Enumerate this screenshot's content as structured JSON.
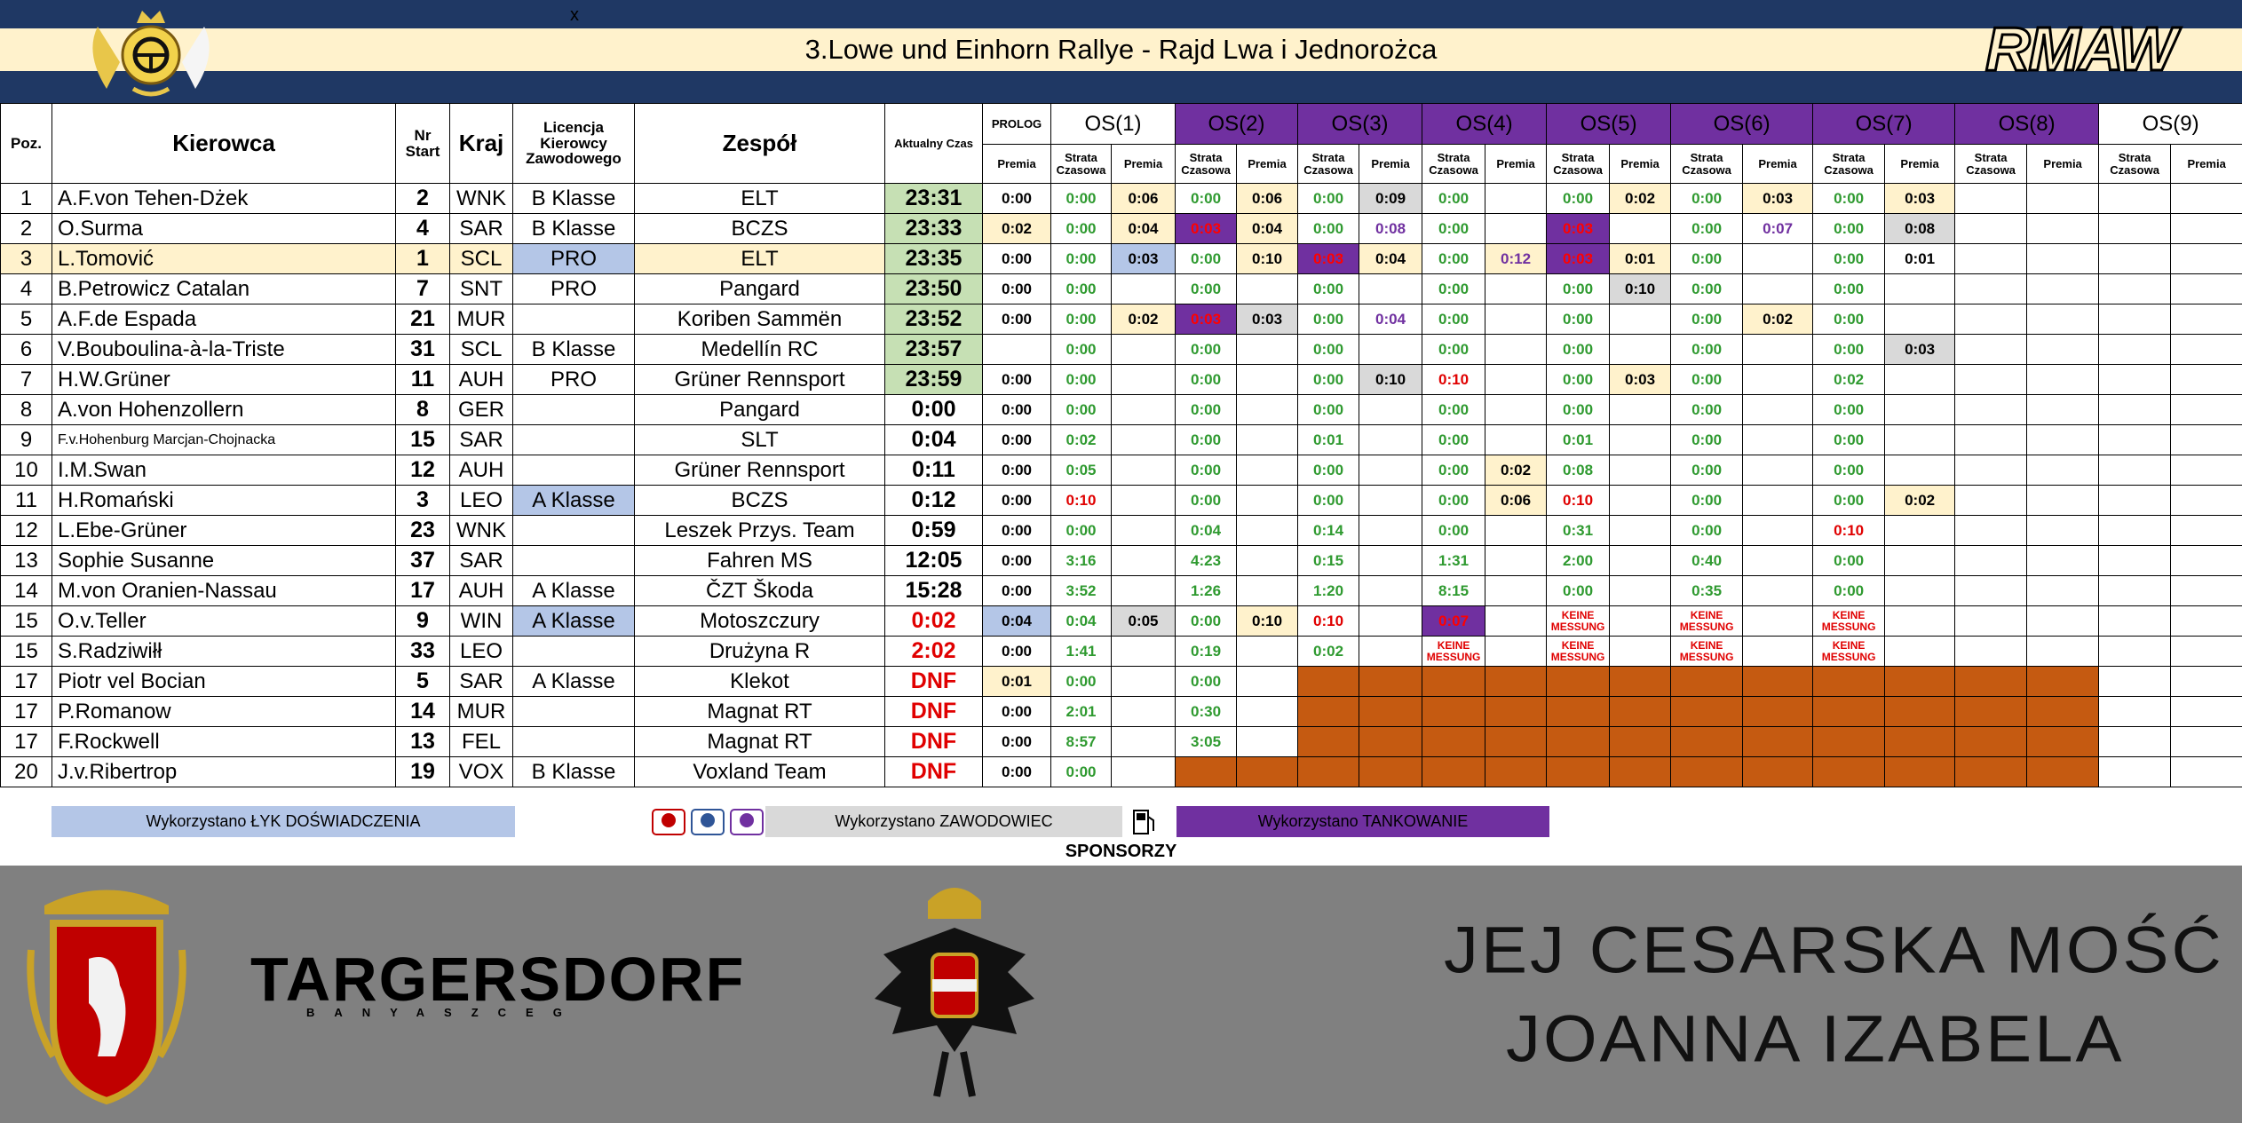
{
  "header": {
    "mark": "x",
    "title": "3.Lowe und Einhorn Rallye - Rajd Lwa i Jednorożca",
    "logo": "RMAW"
  },
  "table": {
    "columns": [
      "Poz.",
      "Kierowca",
      "Nr Start",
      "Kraj",
      "Licencja Kierowcy Zawodowego",
      "Zespół",
      "Aktualny Czas"
    ],
    "prolog": "PROLOG",
    "prolog_sub": "Premia",
    "stages": [
      "OS(1)",
      "OS(2)",
      "OS(3)",
      "OS(4)",
      "OS(5)",
      "OS(6)",
      "OS(7)",
      "OS(8)",
      "OS(9)"
    ],
    "sub_strata": "Strata Czasowa",
    "sub_premia": "Premia",
    "rows": [
      [
        "1",
        "A.F.von Tehen-Dżek",
        "2",
        "WNK",
        "B Klasse",
        "ELT",
        "23:31",
        "0:00",
        "0:00",
        "0:06",
        "0:00",
        "0:06",
        "0:00",
        "0:09",
        "0:00",
        null,
        "0:00",
        "0:02",
        "0:00",
        "0:03",
        "0:00",
        "0:03",
        null,
        null,
        null,
        null
      ],
      [
        "2",
        "O.Surma",
        "4",
        "SAR",
        "B Klasse",
        "BCZS",
        "23:33",
        "0:02",
        "0:00",
        "0:04",
        "0:03",
        "0:04",
        "0:00",
        "0:08",
        "0:00",
        null,
        "0:03",
        null,
        "0:00",
        "0:07",
        "0:00",
        "0:08",
        null,
        null,
        null,
        null
      ],
      [
        "3",
        "L.Tomović",
        "1",
        "SCL",
        "PRO",
        "ELT",
        "23:35",
        "0:00",
        "0:00",
        "0:03",
        "0:00",
        "0:10",
        "0:03",
        "0:04",
        "0:00",
        "0:12",
        "0:03",
        "0:01",
        "0:00",
        null,
        "0:00",
        "0:01",
        null,
        null,
        null,
        null
      ],
      [
        "4",
        "B.Petrowicz Catalan",
        "7",
        "SNT",
        "PRO",
        "Pangard",
        "23:50",
        "0:00",
        "0:00",
        null,
        "0:00",
        null,
        "0:00",
        null,
        "0:00",
        null,
        "0:00",
        "0:10",
        "0:00",
        null,
        "0:00",
        null,
        null,
        null,
        null,
        null
      ],
      [
        "5",
        "A.F.de Espada",
        "21",
        "MUR",
        null,
        "Koriben Sammën",
        "23:52",
        "0:00",
        "0:00",
        "0:02",
        "0:03",
        "0:03",
        "0:00",
        "0:04",
        "0:00",
        null,
        "0:00",
        null,
        "0:00",
        "0:02",
        "0:00",
        null,
        null,
        null,
        null,
        null
      ],
      [
        "6",
        "V.Bouboulina-à-la-Triste",
        "31",
        "SCL",
        "B Klasse",
        "Medellín RC",
        "23:57",
        null,
        "0:00",
        null,
        "0:00",
        null,
        "0:00",
        null,
        "0:00",
        null,
        "0:00",
        null,
        "0:00",
        null,
        "0:00",
        "0:03",
        null,
        null,
        null,
        null
      ],
      [
        "7",
        "H.W.Grüner",
        "11",
        "AUH",
        "PRO",
        "Grüner Rennsport",
        "23:59",
        "0:00",
        "0:00",
        null,
        "0:00",
        null,
        "0:00",
        "0:10",
        "0:10",
        null,
        "0:00",
        "0:03",
        "0:00",
        null,
        "0:02",
        null,
        null,
        null,
        null,
        null
      ],
      [
        "8",
        "A.von Hohenzollern",
        "8",
        "GER",
        null,
        "Pangard",
        "0:00",
        "0:00",
        "0:00",
        null,
        "0:00",
        null,
        "0:00",
        null,
        "0:00",
        null,
        "0:00",
        null,
        "0:00",
        null,
        "0:00",
        null,
        null,
        null,
        null,
        null
      ],
      [
        "9",
        "F.v.Hohenburg Marcjan-Chojnacka",
        "15",
        "SAR",
        null,
        "SLT",
        "0:04",
        "0:00",
        "0:02",
        null,
        "0:00",
        null,
        "0:01",
        null,
        "0:00",
        null,
        "0:01",
        null,
        "0:00",
        null,
        "0:00",
        null,
        null,
        null,
        null,
        null
      ],
      [
        "10",
        "I.M.Swan",
        "12",
        "AUH",
        null,
        "Grüner Rennsport",
        "0:11",
        "0:00",
        "0:05",
        null,
        "0:00",
        null,
        "0:00",
        null,
        "0:00",
        "0:02",
        "0:08",
        null,
        "0:00",
        null,
        "0:00",
        null,
        null,
        null,
        null,
        null
      ],
      [
        "11",
        "H.Romański",
        "3",
        "LEO",
        "A Klasse",
        "BCZS",
        "0:12",
        "0:00",
        "0:10",
        null,
        "0:00",
        null,
        "0:00",
        null,
        "0:00",
        "0:06",
        "0:10",
        null,
        "0:00",
        null,
        "0:00",
        "0:02",
        null,
        null,
        null,
        null
      ],
      [
        "12",
        "L.Ebe-Grüner",
        "23",
        "WNK",
        null,
        "Leszek Przys. Team",
        "0:59",
        "0:00",
        "0:00",
        null,
        "0:04",
        null,
        "0:14",
        null,
        "0:00",
        null,
        "0:31",
        null,
        "0:00",
        null,
        "0:10",
        null,
        null,
        null,
        null,
        null
      ],
      [
        "13",
        "Sophie Susanne",
        "37",
        "SAR",
        null,
        "Fahren MS",
        "12:05",
        "0:00",
        "3:16",
        null,
        "4:23",
        null,
        "0:15",
        null,
        "1:31",
        null,
        "2:00",
        null,
        "0:40",
        null,
        "0:00",
        null,
        null,
        null,
        null,
        null
      ],
      [
        "14",
        "M.von Oranien-Nassau",
        "17",
        "AUH",
        "A Klasse",
        "ČZT Škoda",
        "15:28",
        "0:00",
        "3:52",
        null,
        "1:26",
        null,
        "1:20",
        null,
        "8:15",
        null,
        "0:00",
        null,
        "0:35",
        null,
        "0:00",
        null,
        null,
        null,
        null,
        null
      ],
      [
        "15",
        "O.v.Teller",
        "9",
        "WIN",
        "A Klasse",
        "Motoszczury",
        "0:02",
        "0:04",
        "0:04",
        "0:05",
        "0:00",
        "0:10",
        "0:10",
        null,
        "0:07",
        null,
        "KEINE MESSUNG",
        null,
        "KEINE MESSUNG",
        null,
        "KEINE MESSUNG",
        null,
        null,
        null,
        null,
        null
      ],
      [
        "15",
        "S.Radziwiłł",
        "33",
        "LEO",
        null,
        "Drużyna R",
        "2:02",
        "0:00",
        "1:41",
        null,
        "0:19",
        null,
        "0:02",
        null,
        "KEINE MESSUNG",
        null,
        "KEINE MESSUNG",
        null,
        "KEINE MESSUNG",
        null,
        "KEINE MESSUNG",
        null,
        null,
        null,
        null,
        null
      ],
      [
        "17",
        "Piotr vel Bocian",
        "5",
        "SAR",
        "A Klasse",
        "Klekot",
        "DNF",
        "0:01",
        "0:00",
        null,
        "0:00",
        null,
        null,
        null,
        null,
        null,
        null,
        null,
        null,
        null,
        null,
        null,
        null,
        null,
        null,
        null
      ],
      [
        "17",
        "P.Romanow",
        "14",
        "MUR",
        null,
        "Magnat RT",
        "DNF",
        "0:00",
        "2:01",
        null,
        "0:30",
        null,
        null,
        null,
        null,
        null,
        null,
        null,
        null,
        null,
        null,
        null,
        null,
        null,
        null,
        null
      ],
      [
        "17",
        "F.Rockwell",
        "13",
        "FEL",
        null,
        "Magnat RT",
        "DNF",
        "0:00",
        "8:57",
        null,
        "3:05",
        null,
        null,
        null,
        null,
        null,
        null,
        null,
        null,
        null,
        null,
        null,
        null,
        null,
        null,
        null
      ],
      [
        "20",
        "J.v.Ribertrop",
        "19",
        "VOX",
        "B Klasse",
        "Voxland Team",
        "DNF",
        "0:00",
        "0:00",
        null,
        null,
        null,
        null,
        null,
        null,
        null,
        null,
        null,
        null,
        null,
        null,
        null,
        null,
        null,
        null,
        null
      ]
    ]
  },
  "legend": {
    "experience": "Wykorzystano ŁYK DOŚWIADCZENIA",
    "pro": "Wykorzystano ZAWODOWIEC",
    "tank": "Wykorzystano TANKOWANIE"
  },
  "sponsors": {
    "heading": "SPONSORZY",
    "brand": "TARGERSDORF",
    "brand_sub": "BANYASZCEG",
    "line1": "JEJ CESARSKA MOŚĆ",
    "line2": "JOANNA IZABELA"
  }
}
